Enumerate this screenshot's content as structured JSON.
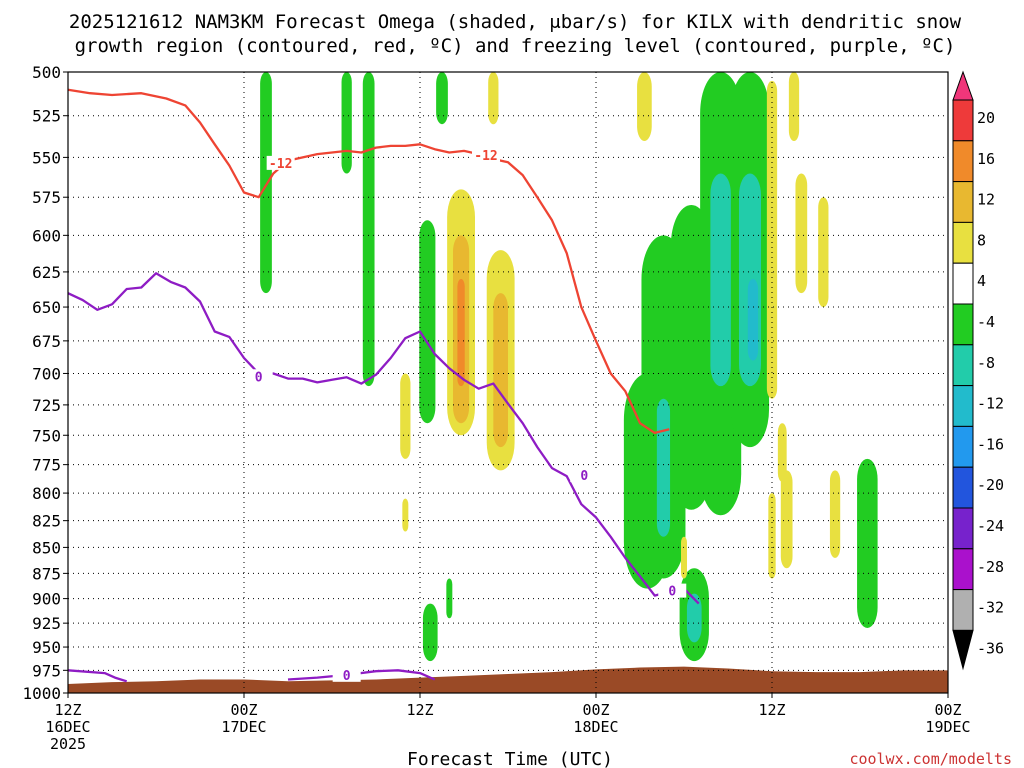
{
  "chart_data": {
    "type": "heatmap",
    "title_line1": "2025121612 NAM3KM Forecast Omega (shaded, μbar/s) for KILX with dendritic snow",
    "title_line2": "growth region (contoured, red, ºC) and freezing level (contoured, purple, ºC)",
    "xlabel": "Forecast Time (UTC)",
    "credit": "coolwx.com/modelts",
    "y_ticks": [
      500,
      525,
      550,
      575,
      600,
      625,
      650,
      675,
      700,
      725,
      750,
      775,
      800,
      825,
      850,
      875,
      900,
      925,
      950,
      975,
      1000
    ],
    "ylim": [
      500,
      1000
    ],
    "y_scale": "log-pressure",
    "x_ticks": [
      {
        "line1": "12Z",
        "line2": "16DEC",
        "line3": "2025"
      },
      {
        "line1": "00Z",
        "line2": "17DEC",
        "line3": ""
      },
      {
        "line1": "12Z",
        "line2": "",
        "line3": ""
      },
      {
        "line1": "00Z",
        "line2": "18DEC",
        "line3": ""
      },
      {
        "line1": "12Z",
        "line2": "",
        "line3": ""
      },
      {
        "line1": "00Z",
        "line2": "19DEC",
        "line3": ""
      }
    ],
    "xlim_hours": [
      0,
      60
    ],
    "colorbar": {
      "levels": [
        "20",
        "16",
        "12",
        "8",
        "4",
        "-4",
        "-8",
        "-12",
        "-16",
        "-20",
        "-24",
        "-28",
        "-32",
        "-36"
      ],
      "colors": [
        "#f0367a",
        "#ee3a3a",
        "#f08a2a",
        "#e8b830",
        "#e8e040",
        "#ffffff",
        "#22cc22",
        "#22ccaa",
        "#22bbcc",
        "#2299ee",
        "#2255dd",
        "#7722cc",
        "#aa11cc",
        "#b0b0b0",
        "#000000"
      ]
    },
    "contours": [
      {
        "name": "red",
        "label": "-12",
        "color": "#ee4433",
        "points": [
          [
            0,
            510
          ],
          [
            1.5,
            512
          ],
          [
            3,
            513
          ],
          [
            5,
            512
          ],
          [
            6.7,
            515
          ],
          [
            8,
            519
          ],
          [
            9,
            529
          ],
          [
            10,
            542
          ],
          [
            11,
            555
          ],
          [
            12,
            572
          ],
          [
            13,
            575
          ],
          [
            14,
            560
          ],
          [
            15,
            552
          ],
          [
            16,
            550
          ],
          [
            17,
            548
          ],
          [
            18,
            547
          ],
          [
            19,
            546
          ],
          [
            20,
            547
          ],
          [
            21,
            544
          ],
          [
            22,
            543
          ],
          [
            23,
            543
          ],
          [
            24,
            542
          ],
          [
            25,
            545
          ],
          [
            26,
            547
          ],
          [
            27,
            546
          ],
          [
            28,
            548
          ],
          [
            29,
            551
          ],
          [
            30,
            553
          ],
          [
            31,
            561
          ],
          [
            32,
            575
          ],
          [
            33,
            590
          ],
          [
            34,
            612
          ],
          [
            35,
            650
          ],
          [
            36,
            675
          ],
          [
            37,
            700
          ],
          [
            38,
            714
          ],
          [
            39,
            740
          ],
          [
            40,
            748
          ],
          [
            41,
            745
          ]
        ]
      },
      {
        "name": "purple",
        "label": "0",
        "color": "#8e1cc4",
        "points": [
          [
            0,
            640
          ],
          [
            1,
            645
          ],
          [
            2,
            652
          ],
          [
            3,
            648
          ],
          [
            4,
            637
          ],
          [
            5,
            636
          ],
          [
            6,
            626
          ],
          [
            7,
            632
          ],
          [
            8,
            636
          ],
          [
            9,
            646
          ],
          [
            10,
            668
          ],
          [
            11,
            672
          ],
          [
            12,
            688
          ],
          [
            13,
            700
          ],
          [
            14,
            700
          ],
          [
            15,
            704
          ],
          [
            16,
            704
          ],
          [
            17,
            707
          ],
          [
            18,
            705
          ],
          [
            19,
            703
          ],
          [
            20,
            708
          ],
          [
            21,
            701
          ],
          [
            22,
            688
          ],
          [
            23,
            673
          ],
          [
            24,
            668
          ],
          [
            25,
            685
          ],
          [
            26,
            696
          ],
          [
            27,
            705
          ],
          [
            28,
            712
          ],
          [
            29,
            708
          ],
          [
            30,
            724
          ],
          [
            31,
            740
          ],
          [
            32,
            760
          ],
          [
            33,
            778
          ],
          [
            34,
            785
          ],
          [
            35,
            810
          ],
          [
            36,
            822
          ],
          [
            37,
            840
          ],
          [
            38,
            860
          ],
          [
            39,
            878
          ],
          [
            40,
            897
          ],
          [
            41,
            893
          ],
          [
            42,
            890
          ],
          [
            43,
            905
          ]
        ]
      },
      {
        "name": "purple-surface",
        "label": "0",
        "color": "#8e1cc4",
        "points": [
          [
            0,
            975
          ],
          [
            2.5,
            978
          ],
          [
            3.2,
            983
          ],
          [
            4,
            987
          ]
        ]
      },
      {
        "name": "purple-bottom",
        "label": "0",
        "color": "#8e1cc4",
        "points": [
          [
            15,
            985
          ],
          [
            17,
            983
          ],
          [
            19,
            980
          ],
          [
            21,
            976
          ],
          [
            22.5,
            975
          ],
          [
            24,
            978
          ],
          [
            25,
            985
          ]
        ]
      }
    ],
    "blobs": [
      {
        "value": "-8",
        "cx": 13.5,
        "p1": 500,
        "p2": 640,
        "w": 0.4
      },
      {
        "value": "-8",
        "cx": 19.0,
        "p1": 500,
        "p2": 560,
        "w": 0.35
      },
      {
        "value": "-8",
        "cx": 20.5,
        "p1": 500,
        "p2": 710,
        "w": 0.4
      },
      {
        "value": "-8",
        "cx": 24.5,
        "p1": 590,
        "p2": 740,
        "w": 0.55
      },
      {
        "value": "-8",
        "cx": 25.5,
        "p1": 500,
        "p2": 530,
        "w": 0.4
      },
      {
        "value": "4",
        "cx": 23.0,
        "p1": 700,
        "p2": 770,
        "w": 0.35
      },
      {
        "value": "4",
        "cx": 23.0,
        "p1": 805,
        "p2": 835,
        "w": 0.2
      },
      {
        "value": "-8",
        "cx": 26.0,
        "p1": 880,
        "p2": 920,
        "w": 0.2
      },
      {
        "value": "-8",
        "cx": 24.7,
        "p1": 905,
        "p2": 965,
        "w": 0.5
      },
      {
        "value": "4",
        "cx": 26.8,
        "p1": 570,
        "p2": 750,
        "w": 0.95
      },
      {
        "value": "8",
        "cx": 26.8,
        "p1": 600,
        "p2": 740,
        "w": 0.55
      },
      {
        "value": "12",
        "cx": 26.8,
        "p1": 630,
        "p2": 710,
        "w": 0.25
      },
      {
        "value": "4",
        "cx": 29.5,
        "p1": 610,
        "p2": 780,
        "w": 0.95
      },
      {
        "value": "8",
        "cx": 29.5,
        "p1": 640,
        "p2": 760,
        "w": 0.5
      },
      {
        "value": "4",
        "cx": 29.0,
        "p1": 500,
        "p2": 530,
        "w": 0.35
      },
      {
        "value": "4",
        "cx": 39.3,
        "p1": 500,
        "p2": 540,
        "w": 0.5
      },
      {
        "value": "-8",
        "cx": 39.5,
        "p1": 700,
        "p2": 890,
        "w": 1.6
      },
      {
        "value": "-8",
        "cx": 40.6,
        "p1": 600,
        "p2": 880,
        "w": 1.5
      },
      {
        "value": "-12",
        "cx": 40.6,
        "p1": 720,
        "p2": 840,
        "w": 0.45
      },
      {
        "value": "-8",
        "cx": 42.5,
        "p1": 580,
        "p2": 815,
        "w": 1.4
      },
      {
        "value": "-8",
        "cx": 44.5,
        "p1": 500,
        "p2": 820,
        "w": 1.4
      },
      {
        "value": "-12",
        "cx": 44.5,
        "p1": 560,
        "p2": 710,
        "w": 0.7
      },
      {
        "value": "-8",
        "cx": 46.5,
        "p1": 500,
        "p2": 760,
        "w": 1.3
      },
      {
        "value": "-12",
        "cx": 46.5,
        "p1": 560,
        "p2": 710,
        "w": 0.75
      },
      {
        "value": "-16",
        "cx": 46.7,
        "p1": 630,
        "p2": 690,
        "w": 0.35
      },
      {
        "value": "-8",
        "cx": 42.7,
        "p1": 870,
        "p2": 965,
        "w": 1.0
      },
      {
        "value": "-12",
        "cx": 42.7,
        "p1": 895,
        "p2": 945,
        "w": 0.5
      },
      {
        "value": "-8",
        "cx": 54.5,
        "p1": 770,
        "p2": 930,
        "w": 0.7
      },
      {
        "value": "4",
        "cx": 48.0,
        "p1": 505,
        "p2": 720,
        "w": 0.35
      },
      {
        "value": "4",
        "cx": 49.5,
        "p1": 500,
        "p2": 540,
        "w": 0.35
      },
      {
        "value": "4",
        "cx": 50.0,
        "p1": 560,
        "p2": 640,
        "w": 0.4
      },
      {
        "value": "4",
        "cx": 51.5,
        "p1": 575,
        "p2": 650,
        "w": 0.35
      },
      {
        "value": "4",
        "cx": 49.0,
        "p1": 780,
        "p2": 870,
        "w": 0.4
      },
      {
        "value": "4",
        "cx": 48.0,
        "p1": 800,
        "p2": 880,
        "w": 0.25
      },
      {
        "value": "4",
        "cx": 52.3,
        "p1": 780,
        "p2": 860,
        "w": 0.35
      },
      {
        "value": "4",
        "cx": 48.7,
        "p1": 740,
        "p2": 790,
        "w": 0.3
      },
      {
        "value": "4",
        "cx": 42.0,
        "p1": 840,
        "p2": 880,
        "w": 0.2
      }
    ],
    "terrain": {
      "color": "#9a4a26",
      "tops": [
        [
          0,
          990
        ],
        [
          3,
          988
        ],
        [
          6,
          987
        ],
        [
          9,
          985
        ],
        [
          12,
          985
        ],
        [
          15,
          987
        ],
        [
          18,
          986
        ],
        [
          21,
          985
        ],
        [
          24,
          983
        ],
        [
          27,
          981
        ],
        [
          30,
          979
        ],
        [
          33,
          977
        ],
        [
          36,
          974
        ],
        [
          39,
          972
        ],
        [
          42,
          971
        ],
        [
          45,
          973
        ],
        [
          48,
          976
        ],
        [
          51,
          977
        ],
        [
          54,
          977
        ],
        [
          57,
          975
        ],
        [
          60,
          975
        ]
      ]
    }
  }
}
